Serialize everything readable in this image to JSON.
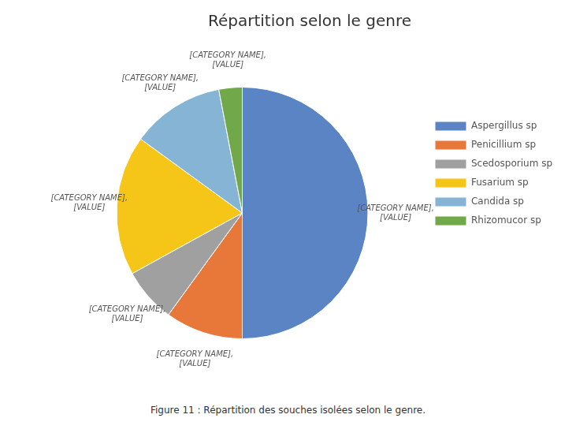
{
  "chart_data": {
    "type": "pie",
    "title": "Répartition selon le genre",
    "categories": [
      "Aspergillus sp",
      "Penicillium sp",
      "Scedosporium sp",
      "Fusarium sp",
      "Candida sp",
      "Rhizomucor sp"
    ],
    "values": [
      50,
      10,
      7,
      18,
      12,
      3
    ],
    "colors": [
      "#5B84C4",
      "#E8783A",
      "#A0A0A0",
      "#F5C518",
      "#85B4D4",
      "#70A84A"
    ],
    "slice_labels": [
      "[CATEGORY NAME],\n[VALUE]",
      "[CATEGORY NAME],\n[VALUE]",
      "[CATEGORY NAME],\n[VALUE]",
      "[CATEGORY NAME],\n[VALUE]",
      "[CATEGORY NAME],\n[VALUE]",
      "[CATEGORY NAME],\n[VALUE]"
    ],
    "annotations": [
      "Figure 11 : Répartition des souches isolées selon le genre."
    ],
    "legend": "right"
  }
}
